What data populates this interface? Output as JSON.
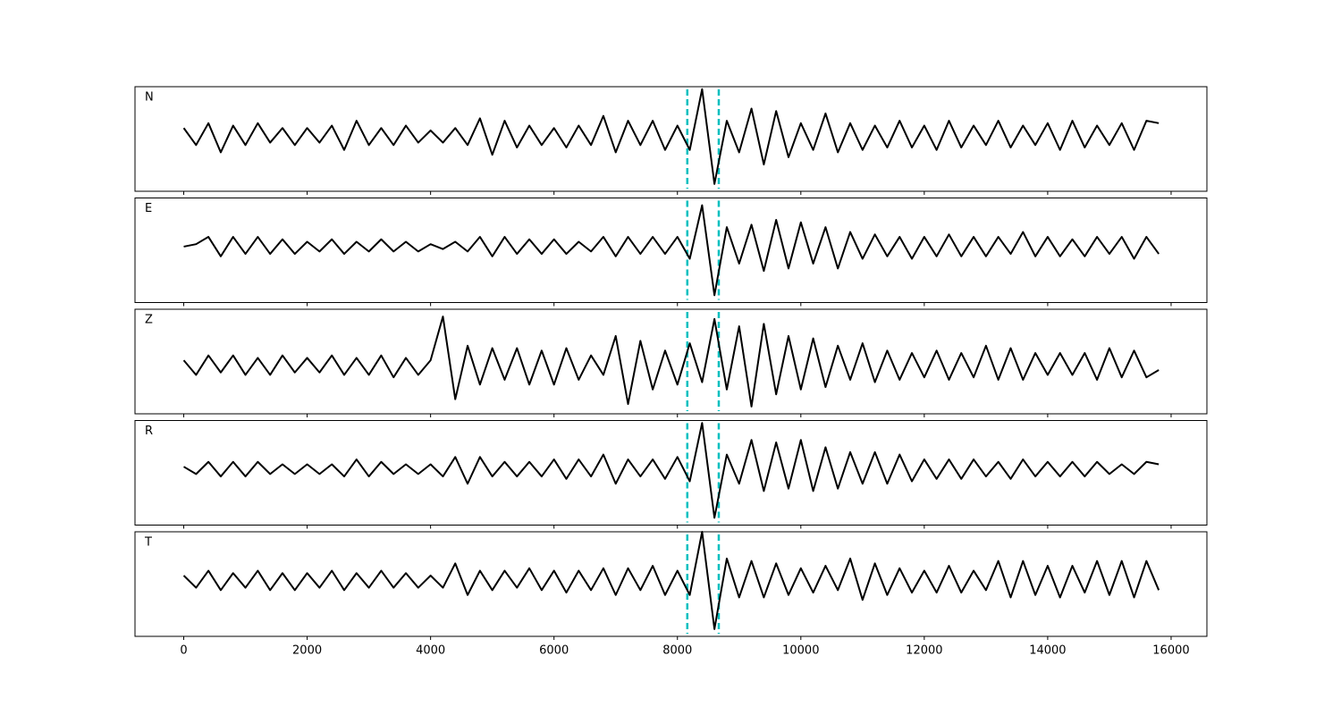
{
  "chart_data": [
    {
      "type": "line",
      "label": "N",
      "color": "#000000",
      "xlim": [
        -790,
        16580
      ],
      "ylim": [
        -1.15,
        1.0
      ],
      "x": [
        0,
        200,
        400,
        600,
        800,
        1000,
        1200,
        1400,
        1600,
        1800,
        2000,
        2200,
        2400,
        2600,
        2800,
        3000,
        3200,
        3400,
        3600,
        3800,
        4000,
        4200,
        4400,
        4600,
        4800,
        5000,
        5200,
        5400,
        5600,
        5800,
        6000,
        6200,
        6400,
        6600,
        6800,
        7000,
        7200,
        7400,
        7600,
        7800,
        8000,
        8200,
        8400,
        8600,
        8800,
        9000,
        9200,
        9400,
        9600,
        9800,
        10000,
        10200,
        10400,
        10600,
        10800,
        11000,
        11200,
        11400,
        11600,
        11800,
        12000,
        12200,
        12400,
        12600,
        12800,
        13000,
        13200,
        13400,
        13600,
        13800,
        14000,
        14200,
        14400,
        14600,
        14800,
        15000,
        15200,
        15400,
        15600,
        15800
      ],
      "values": [
        0.15,
        -0.2,
        0.25,
        -0.35,
        0.2,
        -0.2,
        0.25,
        -0.15,
        0.15,
        -0.2,
        0.15,
        -0.15,
        0.2,
        -0.3,
        0.3,
        -0.2,
        0.15,
        -0.2,
        0.2,
        -0.15,
        0.1,
        -0.15,
        0.15,
        -0.2,
        0.35,
        -0.4,
        0.3,
        -0.25,
        0.2,
        -0.2,
        0.15,
        -0.25,
        0.2,
        -0.2,
        0.4,
        -0.35,
        0.3,
        -0.2,
        0.3,
        -0.3,
        0.2,
        -0.3,
        0.95,
        -1.0,
        0.3,
        -0.35,
        0.55,
        -0.6,
        0.5,
        -0.45,
        0.25,
        -0.3,
        0.45,
        -0.35,
        0.25,
        -0.3,
        0.2,
        -0.25,
        0.3,
        -0.25,
        0.2,
        -0.3,
        0.3,
        -0.25,
        0.2,
        -0.2,
        0.3,
        -0.25,
        0.2,
        -0.2,
        0.25,
        -0.3,
        0.3,
        -0.25,
        0.2,
        -0.2,
        0.25,
        -0.3,
        0.3,
        0.25
      ],
      "vlines": [
        8160,
        8670
      ],
      "vline_color": "#00bfbf"
    },
    {
      "type": "line",
      "label": "E",
      "color": "#000000",
      "xlim": [
        -790,
        16580
      ],
      "ylim": [
        -1.15,
        1.0
      ],
      "x": [
        0,
        200,
        400,
        600,
        800,
        1000,
        1200,
        1400,
        1600,
        1800,
        2000,
        2200,
        2400,
        2600,
        2800,
        3000,
        3200,
        3400,
        3600,
        3800,
        4000,
        4200,
        4400,
        4600,
        4800,
        5000,
        5200,
        5400,
        5600,
        5800,
        6000,
        6200,
        6400,
        6600,
        6800,
        7000,
        7200,
        7400,
        7600,
        7800,
        8000,
        8200,
        8400,
        8600,
        8800,
        9000,
        9200,
        9400,
        9600,
        9800,
        10000,
        10200,
        10400,
        10600,
        10800,
        11000,
        11200,
        11400,
        11600,
        11800,
        12000,
        12200,
        12400,
        12600,
        12800,
        13000,
        13200,
        13400,
        13600,
        13800,
        14000,
        14200,
        14400,
        14600,
        14800,
        15000,
        15200,
        15400,
        15600,
        15800
      ],
      "values": [
        0,
        0.05,
        0.2,
        -0.2,
        0.2,
        -0.15,
        0.2,
        -0.15,
        0.15,
        -0.15,
        0.1,
        -0.1,
        0.15,
        -0.15,
        0.1,
        -0.1,
        0.15,
        -0.1,
        0.1,
        -0.1,
        0.05,
        -0.05,
        0.1,
        -0.1,
        0.2,
        -0.2,
        0.2,
        -0.15,
        0.15,
        -0.15,
        0.15,
        -0.15,
        0.1,
        -0.1,
        0.2,
        -0.2,
        0.2,
        -0.15,
        0.2,
        -0.15,
        0.2,
        -0.25,
        0.85,
        -1.0,
        0.4,
        -0.35,
        0.45,
        -0.5,
        0.55,
        -0.45,
        0.5,
        -0.35,
        0.4,
        -0.45,
        0.3,
        -0.25,
        0.25,
        -0.2,
        0.2,
        -0.25,
        0.2,
        -0.2,
        0.25,
        -0.2,
        0.2,
        -0.2,
        0.2,
        -0.15,
        0.3,
        -0.2,
        0.2,
        -0.2,
        0.15,
        -0.2,
        0.2,
        -0.15,
        0.2,
        -0.25,
        0.2,
        -0.15
      ],
      "vlines": [
        8160,
        8670
      ],
      "vline_color": "#00bfbf"
    },
    {
      "type": "line",
      "label": "Z",
      "color": "#000000",
      "xlim": [
        -790,
        16580
      ],
      "ylim": [
        -1.0,
        1.15
      ],
      "x": [
        0,
        200,
        400,
        600,
        800,
        1000,
        1200,
        1400,
        1600,
        1800,
        2000,
        2200,
        2400,
        2600,
        2800,
        3000,
        3200,
        3400,
        3600,
        3800,
        4000,
        4200,
        4400,
        4600,
        4800,
        5000,
        5200,
        5400,
        5600,
        5800,
        6000,
        6200,
        6400,
        6600,
        6800,
        7000,
        7200,
        7400,
        7600,
        7800,
        8000,
        8200,
        8400,
        8600,
        8800,
        9000,
        9200,
        9400,
        9600,
        9800,
        10000,
        10200,
        10400,
        10600,
        10800,
        11000,
        11200,
        11400,
        11600,
        11800,
        12000,
        12200,
        12400,
        12600,
        12800,
        13000,
        13200,
        13400,
        13600,
        13800,
        14000,
        14200,
        14400,
        14600,
        14800,
        15000,
        15200,
        15400,
        15600,
        15800
      ],
      "values": [
        0.1,
        -0.2,
        0.2,
        -0.15,
        0.2,
        -0.2,
        0.15,
        -0.2,
        0.2,
        -0.15,
        0.15,
        -0.15,
        0.2,
        -0.2,
        0.15,
        -0.2,
        0.2,
        -0.25,
        0.15,
        -0.2,
        0.1,
        1.0,
        -0.7,
        0.4,
        -0.4,
        0.35,
        -0.3,
        0.35,
        -0.4,
        0.3,
        -0.4,
        0.35,
        -0.3,
        0.2,
        -0.2,
        0.6,
        -0.8,
        0.5,
        -0.5,
        0.3,
        -0.4,
        0.45,
        -0.35,
        0.95,
        -0.5,
        0.8,
        -0.85,
        0.85,
        -0.6,
        0.6,
        -0.5,
        0.55,
        -0.45,
        0.4,
        -0.3,
        0.45,
        -0.35,
        0.3,
        -0.3,
        0.25,
        -0.25,
        0.3,
        -0.3,
        0.25,
        -0.25,
        0.4,
        -0.3,
        0.35,
        -0.3,
        0.25,
        -0.2,
        0.25,
        -0.2,
        0.25,
        -0.3,
        0.35,
        -0.25,
        0.3,
        -0.25,
        -0.1
      ],
      "vlines": [
        8160,
        8670
      ],
      "vline_color": "#00bfbf"
    },
    {
      "type": "line",
      "label": "R",
      "color": "#000000",
      "xlim": [
        -790,
        16580
      ],
      "ylim": [
        -1.15,
        1.0
      ],
      "x": [
        0,
        200,
        400,
        600,
        800,
        1000,
        1200,
        1400,
        1600,
        1800,
        2000,
        2200,
        2400,
        2600,
        2800,
        3000,
        3200,
        3400,
        3600,
        3800,
        4000,
        4200,
        4400,
        4600,
        4800,
        5000,
        5200,
        5400,
        5600,
        5800,
        6000,
        6200,
        6400,
        6600,
        6800,
        7000,
        7200,
        7400,
        7600,
        7800,
        8000,
        8200,
        8400,
        8600,
        8800,
        9000,
        9200,
        9400,
        9600,
        9800,
        10000,
        10200,
        10400,
        10600,
        10800,
        11000,
        11200,
        11400,
        11600,
        11800,
        12000,
        12200,
        12400,
        12600,
        12800,
        13000,
        13200,
        13400,
        13600,
        13800,
        14000,
        14200,
        14400,
        14600,
        14800,
        15000,
        15200,
        15400,
        15600,
        15800
      ],
      "values": [
        0.05,
        -0.1,
        0.15,
        -0.15,
        0.15,
        -0.15,
        0.15,
        -0.1,
        0.1,
        -0.1,
        0.1,
        -0.1,
        0.1,
        -0.15,
        0.2,
        -0.15,
        0.15,
        -0.1,
        0.1,
        -0.1,
        0.1,
        -0.15,
        0.25,
        -0.3,
        0.25,
        -0.15,
        0.15,
        -0.15,
        0.15,
        -0.15,
        0.2,
        -0.2,
        0.2,
        -0.15,
        0.3,
        -0.3,
        0.2,
        -0.15,
        0.2,
        -0.2,
        0.25,
        -0.25,
        0.95,
        -1.0,
        0.3,
        -0.3,
        0.6,
        -0.45,
        0.55,
        -0.4,
        0.6,
        -0.45,
        0.45,
        -0.4,
        0.35,
        -0.3,
        0.35,
        -0.3,
        0.3,
        -0.25,
        0.2,
        -0.2,
        0.2,
        -0.2,
        0.2,
        -0.15,
        0.15,
        -0.2,
        0.2,
        -0.15,
        0.15,
        -0.15,
        0.15,
        -0.15,
        0.15,
        -0.1,
        0.1,
        -0.1,
        0.15,
        0.1
      ],
      "vlines": [
        8160,
        8670
      ],
      "vline_color": "#00bfbf"
    },
    {
      "type": "line",
      "label": "T",
      "color": "#000000",
      "xlim": [
        -790,
        16580
      ],
      "ylim": [
        -1.15,
        1.0
      ],
      "x": [
        0,
        200,
        400,
        600,
        800,
        1000,
        1200,
        1400,
        1600,
        1800,
        2000,
        2200,
        2400,
        2600,
        2800,
        3000,
        3200,
        3400,
        3600,
        3800,
        4000,
        4200,
        4400,
        4600,
        4800,
        5000,
        5200,
        5400,
        5600,
        5800,
        6000,
        6200,
        6400,
        6600,
        6800,
        7000,
        7200,
        7400,
        7600,
        7800,
        8000,
        8200,
        8400,
        8600,
        8800,
        9000,
        9200,
        9400,
        9600,
        9800,
        10000,
        10200,
        10400,
        10600,
        10800,
        11000,
        11200,
        11400,
        11600,
        11800,
        12000,
        12200,
        12400,
        12600,
        12800,
        13000,
        13200,
        13400,
        13600,
        13800,
        14000,
        14200,
        14400,
        14600,
        14800,
        15000,
        15200,
        15400,
        15600,
        15800
      ],
      "values": [
        0.1,
        -0.15,
        0.2,
        -0.2,
        0.15,
        -0.15,
        0.2,
        -0.2,
        0.15,
        -0.2,
        0.15,
        -0.15,
        0.2,
        -0.2,
        0.15,
        -0.15,
        0.2,
        -0.15,
        0.15,
        -0.15,
        0.1,
        -0.15,
        0.35,
        -0.3,
        0.2,
        -0.2,
        0.2,
        -0.15,
        0.25,
        -0.2,
        0.2,
        -0.25,
        0.2,
        -0.2,
        0.25,
        -0.3,
        0.25,
        -0.2,
        0.3,
        -0.3,
        0.2,
        -0.3,
        1.0,
        -1.0,
        0.45,
        -0.35,
        0.4,
        -0.35,
        0.35,
        -0.3,
        0.25,
        -0.25,
        0.3,
        -0.2,
        0.45,
        -0.4,
        0.35,
        -0.3,
        0.25,
        -0.25,
        0.2,
        -0.25,
        0.3,
        -0.25,
        0.2,
        -0.2,
        0.4,
        -0.35,
        0.4,
        -0.3,
        0.3,
        -0.35,
        0.3,
        -0.25,
        0.4,
        -0.3,
        0.4,
        -0.35,
        0.4,
        -0.2
      ],
      "vlines": [
        8160,
        8670
      ],
      "vline_color": "#00bfbf",
      "xticks": [
        0,
        2000,
        4000,
        6000,
        8000,
        10000,
        12000,
        14000,
        16000
      ]
    }
  ]
}
